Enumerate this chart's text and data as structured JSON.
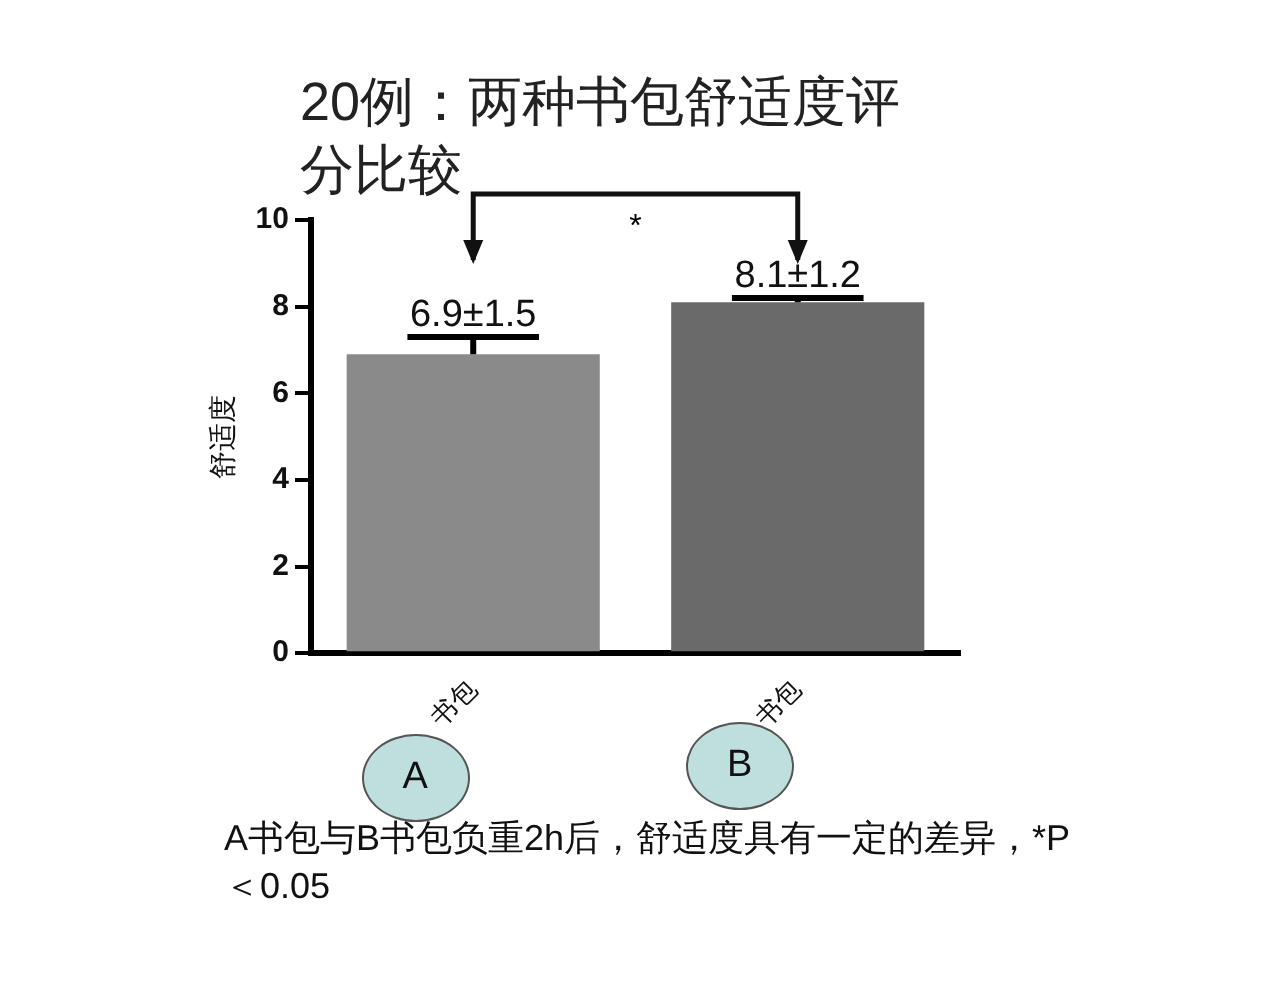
{
  "chart_data": {
    "type": "bar",
    "title": "20例：两种书包舒适度评分比较",
    "ylabel": "舒适度",
    "categories": [
      "书包",
      "书包"
    ],
    "values": [
      6.9,
      8.1
    ],
    "colors": [
      "#8a8a8a",
      "#6a6a6a"
    ],
    "errors": [
      [
        6.9,
        7.3
      ],
      [
        8.1,
        8.2
      ]
    ],
    "value_labels": [
      "6.9±1.5",
      "8.1±1.2"
    ],
    "ylim": [
      0,
      10
    ],
    "yticks": [
      0,
      2,
      4,
      6,
      8,
      10
    ],
    "grid": false,
    "legend": false,
    "annotations": [
      "*",
      "A",
      "B",
      "A书包与B书包负重2h后，舒适度具有一定的差异，*P＜0.05"
    ]
  }
}
